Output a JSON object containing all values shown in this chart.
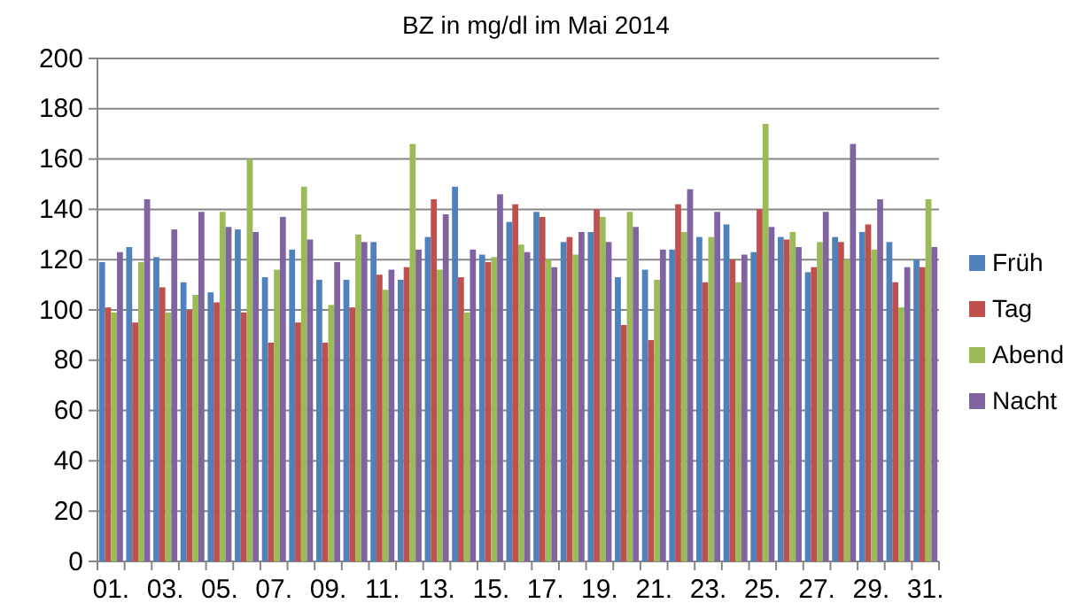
{
  "chart_data": {
    "type": "bar",
    "title": "BZ in mg/dl im Mai 2014",
    "categories": [
      "01.",
      null,
      "03.",
      null,
      "05.",
      null,
      "07.",
      null,
      "09.",
      null,
      "11.",
      null,
      "13.",
      null,
      "15.",
      null,
      "17.",
      null,
      "19.",
      null,
      "21.",
      null,
      "23.",
      null,
      "25.",
      null,
      "27.",
      null,
      "29.",
      null,
      "31."
    ],
    "series": [
      {
        "name": "Früh",
        "color": "#4f81bd",
        "values": [
          119,
          125,
          121,
          111,
          107,
          132,
          113,
          124,
          112,
          112,
          127,
          112,
          129,
          149,
          122,
          135,
          139,
          127,
          131,
          113,
          116,
          124,
          129,
          134,
          123,
          129,
          115,
          129,
          131,
          127,
          120
        ]
      },
      {
        "name": "Tag",
        "color": "#c0504d",
        "values": [
          101,
          95,
          109,
          100,
          103,
          99,
          87,
          95,
          87,
          101,
          114,
          117,
          144,
          113,
          119,
          142,
          137,
          129,
          140,
          94,
          88,
          142,
          111,
          120,
          140,
          128,
          117,
          127,
          134,
          111,
          117
        ]
      },
      {
        "name": "Abend",
        "color": "#9bbb59",
        "values": [
          99,
          119,
          99,
          106,
          139,
          160,
          116,
          149,
          102,
          130,
          108,
          166,
          116,
          99,
          121,
          126,
          120,
          122,
          137,
          139,
          112,
          131,
          129,
          111,
          174,
          131,
          127,
          120,
          124,
          101,
          144
        ]
      },
      {
        "name": "Nacht",
        "color": "#8064a2",
        "values": [
          123,
          144,
          132,
          139,
          133,
          131,
          137,
          128,
          119,
          127,
          116,
          124,
          138,
          124,
          146,
          123,
          117,
          131,
          127,
          133,
          124,
          148,
          139,
          122,
          133,
          125,
          139,
          166,
          144,
          117,
          125
        ]
      }
    ],
    "ylim": [
      0,
      200
    ],
    "yticks": [
      0,
      20,
      40,
      60,
      80,
      100,
      120,
      140,
      160,
      180,
      200
    ],
    "grid": "y",
    "legend": "right"
  }
}
